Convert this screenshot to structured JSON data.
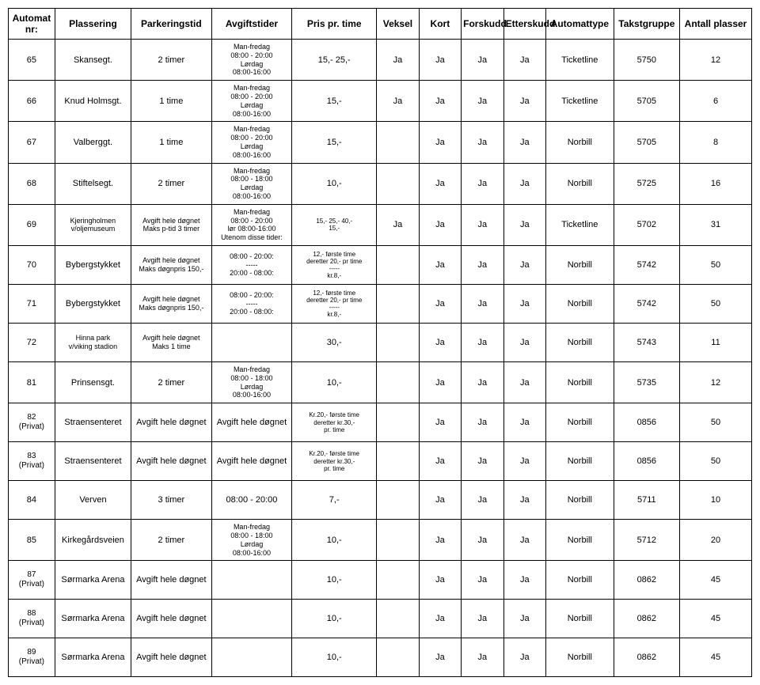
{
  "headers": [
    "Automat nr:",
    "Plassering",
    "Parkeringstid",
    "Avgiftstider",
    "Pris pr. time",
    "Veksel",
    "Kort",
    "Forskudd",
    "Etterskudd",
    "Automattype",
    "Takstgruppe",
    "Antall plasser"
  ],
  "rows": [
    {
      "nr": "65",
      "loc": "Skansegt.",
      "park": "2 timer",
      "avg": "Man-fredag\n08:00 - 20:00\nLørdag\n08:00-16:00",
      "pris": "15,- 25,-",
      "v": "Ja",
      "k": "Ja",
      "f": "Ja",
      "e": "Ja",
      "type": "Ticketline",
      "tg": "5750",
      "ap": "12"
    },
    {
      "nr": "66",
      "loc": "Knud Holmsgt.",
      "park": "1 time",
      "avg": "Man-fredag\n08:00 - 20:00\nLørdag\n08:00-16:00",
      "pris": "15,-",
      "v": "Ja",
      "k": "Ja",
      "f": "Ja",
      "e": "Ja",
      "type": "Ticketline",
      "tg": "5705",
      "ap": "6"
    },
    {
      "nr": "67",
      "loc": "Valberggt.",
      "park": "1 time",
      "avg": "Man-fredag\n08:00 - 20:00\nLørdag\n08:00-16:00",
      "pris": "15,-",
      "v": "",
      "k": "Ja",
      "f": "Ja",
      "e": "Ja",
      "type": "Norbill",
      "tg": "5705",
      "ap": "8"
    },
    {
      "nr": "68",
      "loc": "Stiftelsegt.",
      "park": "2 timer",
      "avg": "Man-fredag\n08:00 - 18:00\nLørdag\n08:00-16:00",
      "pris": "10,-",
      "v": "",
      "k": "Ja",
      "f": "Ja",
      "e": "Ja",
      "type": "Norbill",
      "tg": "5725",
      "ap": "16"
    },
    {
      "nr": "69",
      "loc": "Kjeringholmen\nv/oljemuseum",
      "park": "Avgift hele døgnet\nMaks p-tid 3 timer",
      "avg": "Man-fredag\n08:00 - 20:00\nlør 08:00-16:00\nUtenom disse tider:",
      "pris": "15,- 25,- 40,-\n15,-",
      "v": "Ja",
      "k": "Ja",
      "f": "Ja",
      "e": "Ja",
      "type": "Ticketline",
      "tg": "5702",
      "ap": "31"
    },
    {
      "nr": "70",
      "loc": "Bybergstykket",
      "park": "Avgift hele døgnet\nMaks døgnpris 150,-",
      "avg": "08:00 - 20:00:\n-----\n20:00 - 08:00:",
      "pris": "12,- første time\nderetter 20,- pr time\n-----\nkr.8,-",
      "v": "",
      "k": "Ja",
      "f": "Ja",
      "e": "Ja",
      "type": "Norbill",
      "tg": "5742",
      "ap": "50"
    },
    {
      "nr": "71",
      "loc": "Bybergstykket",
      "park": "Avgift hele døgnet\nMaks døgnpris 150,-",
      "avg": "08:00 - 20:00:\n-----\n20:00 - 08:00:",
      "pris": "12,- første time\nderetter 20,- pr time\n-----\nkr.8,-",
      "v": "",
      "k": "Ja",
      "f": "Ja",
      "e": "Ja",
      "type": "Norbill",
      "tg": "5742",
      "ap": "50"
    },
    {
      "nr": "72",
      "loc": "Hinna park\nv/viking stadion",
      "park": "Avgift hele døgnet\nMaks 1 time",
      "avg": "",
      "pris": "30,-",
      "v": "",
      "k": "Ja",
      "f": "Ja",
      "e": "Ja",
      "type": "Norbill",
      "tg": "5743",
      "ap": "11"
    },
    {
      "nr": "81",
      "loc": "Prinsensgt.",
      "park": "2 timer",
      "avg": "Man-fredag\n08:00 - 18:00\nLørdag\n08:00-16:00",
      "pris": "10,-",
      "v": "",
      "k": "Ja",
      "f": "Ja",
      "e": "Ja",
      "type": "Norbill",
      "tg": "5735",
      "ap": "12"
    },
    {
      "nr": "82\n(Privat)",
      "loc": "Straensenteret",
      "park": "Avgift hele døgnet",
      "avg": "Avgift hele døgnet",
      "pris": "Kr.20,- første time\nderetter kr.30,-\npr. time",
      "v": "",
      "k": "Ja",
      "f": "Ja",
      "e": "Ja",
      "type": "Norbill",
      "tg": "0856",
      "ap": "50"
    },
    {
      "nr": "83\n(Privat)",
      "loc": "Straensenteret",
      "park": "Avgift hele døgnet",
      "avg": "Avgift hele døgnet",
      "pris": "Kr.20,- første time\nderetter kr.30,-\npr. time",
      "v": "",
      "k": "Ja",
      "f": "Ja",
      "e": "Ja",
      "type": "Norbill",
      "tg": "0856",
      "ap": "50"
    },
    {
      "nr": "84",
      "loc": "Verven",
      "park": "3 timer",
      "avg": "08:00 - 20:00",
      "pris": "7,-",
      "v": "",
      "k": "Ja",
      "f": "Ja",
      "e": "Ja",
      "type": "Norbill",
      "tg": "5711",
      "ap": "10"
    },
    {
      "nr": "85",
      "loc": "Kirkegårdsveien",
      "park": "2 timer",
      "avg": "Man-fredag\n08:00 - 18:00\nLørdag\n08:00-16:00",
      "pris": "10,-",
      "v": "",
      "k": "Ja",
      "f": "Ja",
      "e": "Ja",
      "type": "Norbill",
      "tg": "5712",
      "ap": "20"
    },
    {
      "nr": "87\n(Privat)",
      "loc": "Sørmarka Arena",
      "park": "Avgift hele døgnet",
      "avg": "",
      "pris": "10,-",
      "v": "",
      "k": "Ja",
      "f": "Ja",
      "e": "Ja",
      "type": "Norbill",
      "tg": "0862",
      "ap": "45"
    },
    {
      "nr": "88\n(Privat)",
      "loc": "Sørmarka Arena",
      "park": "Avgift hele døgnet",
      "avg": "",
      "pris": "10,-",
      "v": "",
      "k": "Ja",
      "f": "Ja",
      "e": "Ja",
      "type": "Norbill",
      "tg": "0862",
      "ap": "45"
    },
    {
      "nr": "89\n(Privat)",
      "loc": "Sørmarka Arena",
      "park": "Avgift hele døgnet",
      "avg": "",
      "pris": "10,-",
      "v": "",
      "k": "Ja",
      "f": "Ja",
      "e": "Ja",
      "type": "Norbill",
      "tg": "0862",
      "ap": "45"
    }
  ],
  "style": {
    "font": "Arial",
    "header_fontsize": 12,
    "cell_fontsize": 11,
    "small_fontsize": 9,
    "tiny_fontsize": 8,
    "border_color": "#000000",
    "background_color": "#ffffff",
    "text_color": "#000000"
  }
}
